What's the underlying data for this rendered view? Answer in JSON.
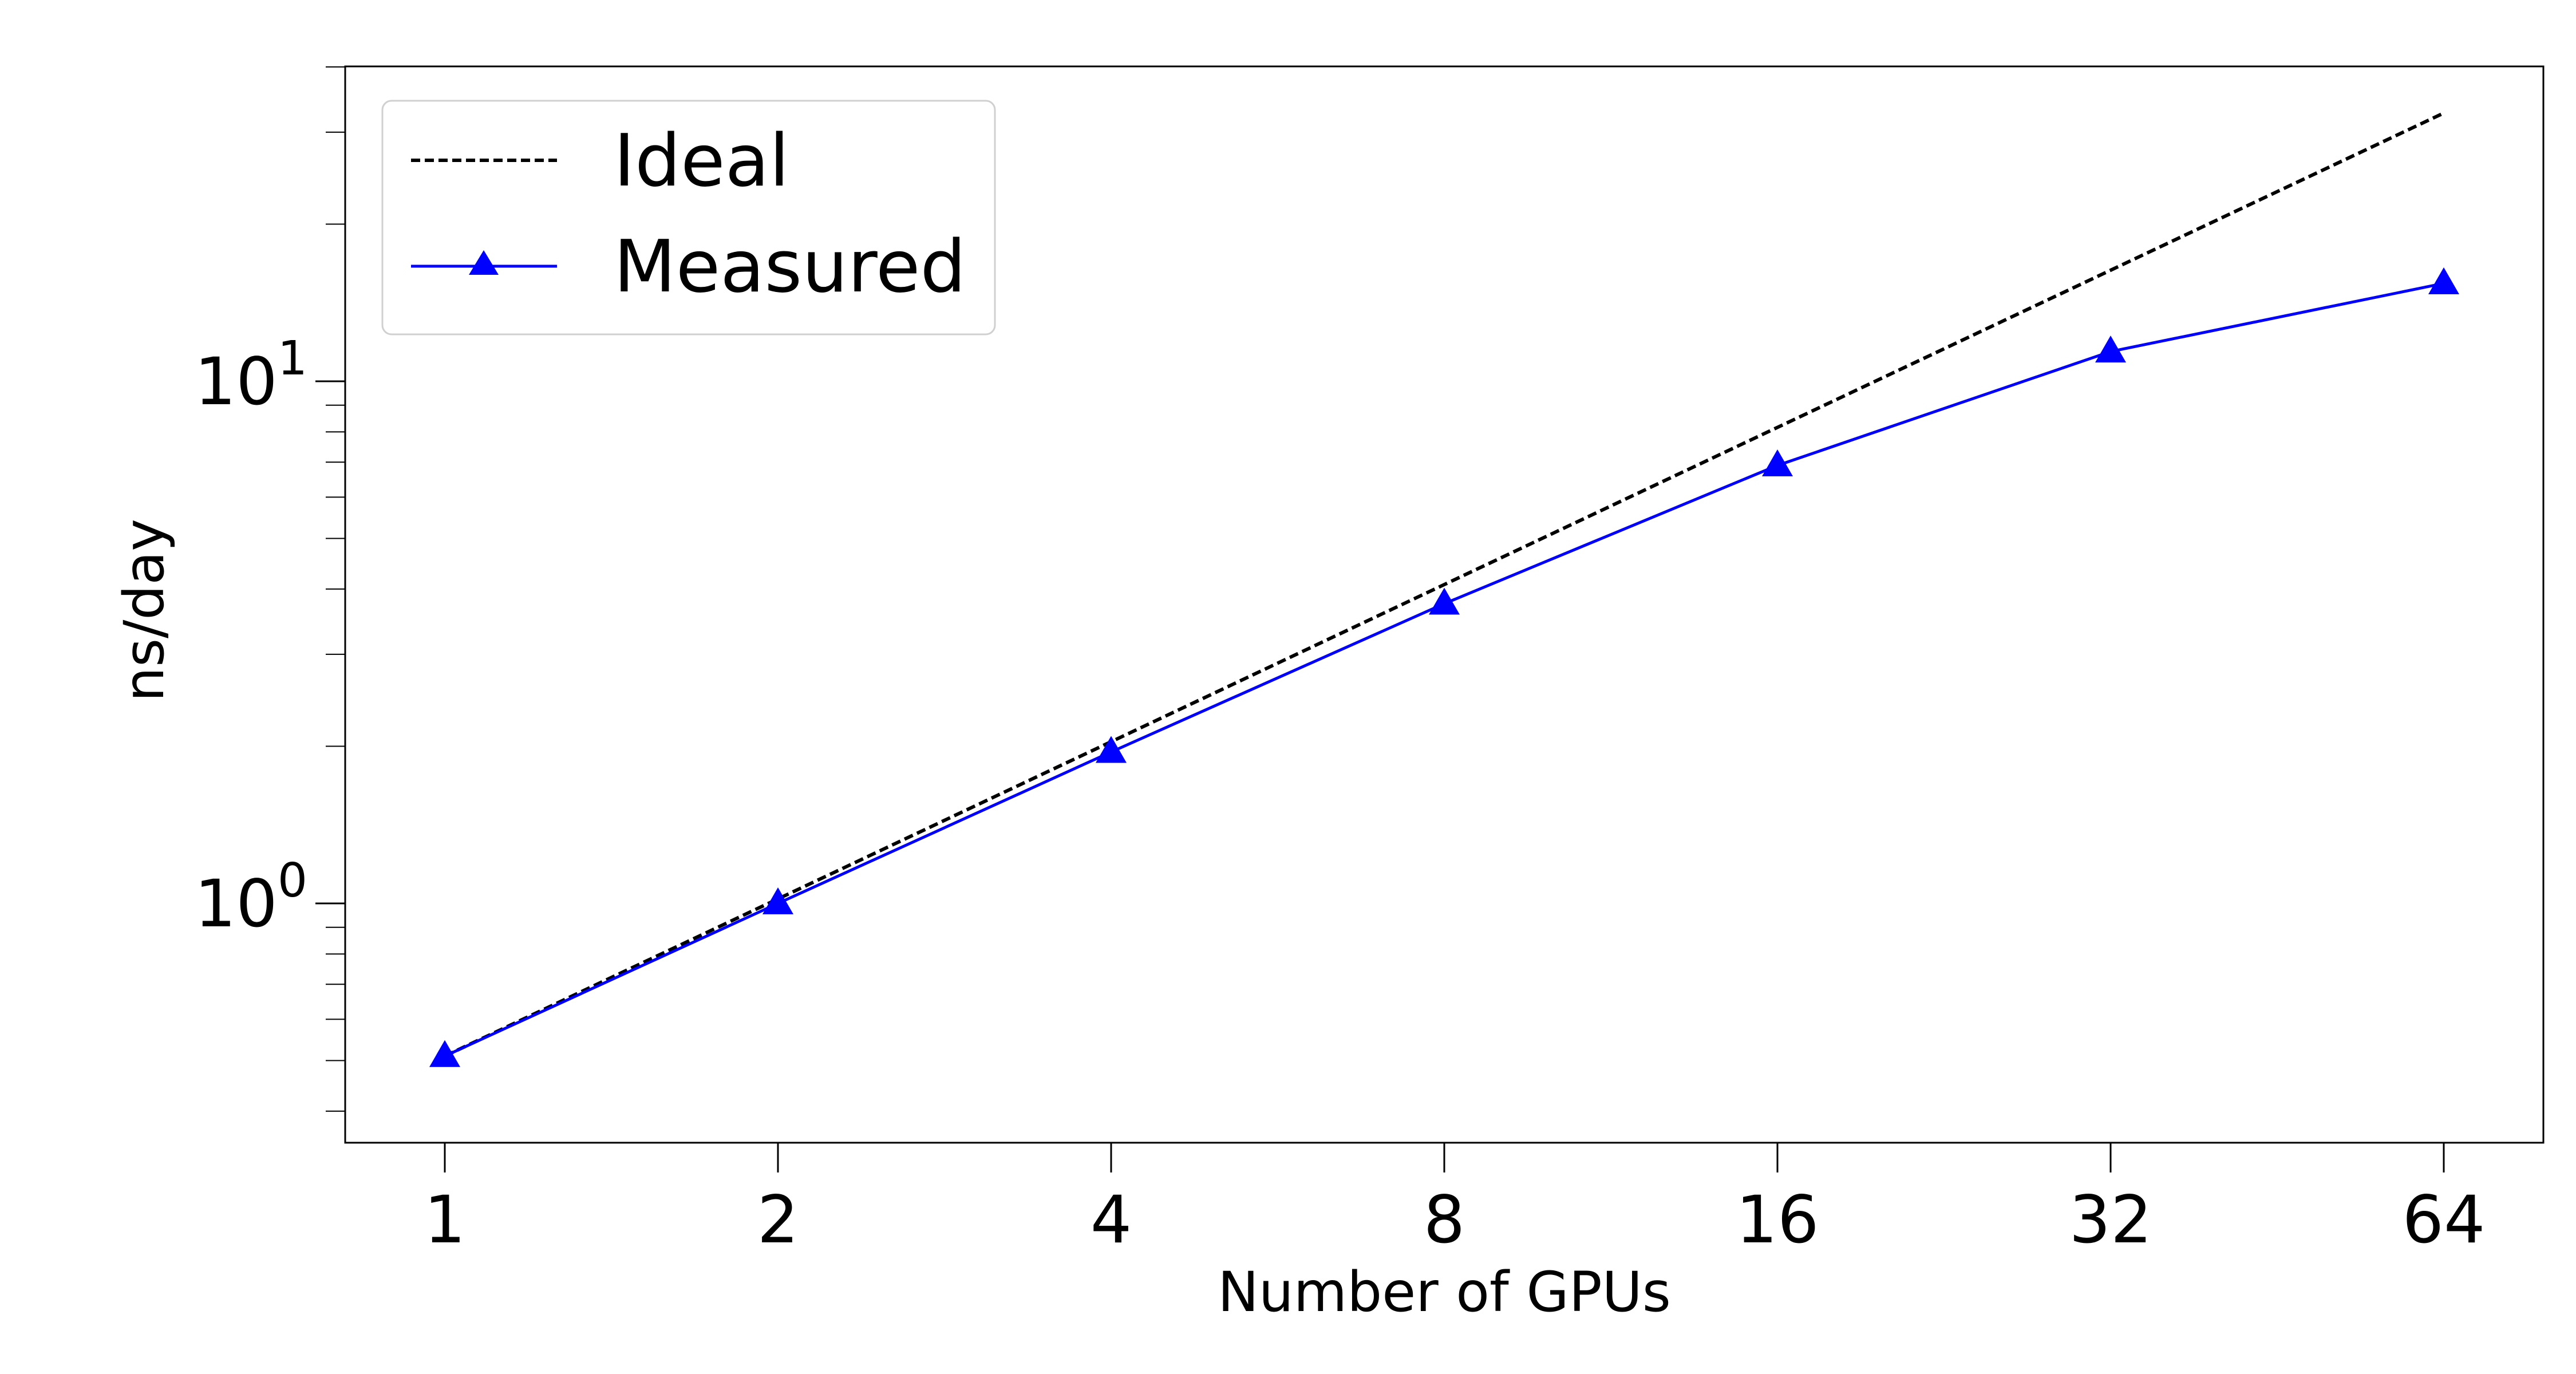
{
  "chart_data": {
    "type": "line",
    "x_scale": "log2",
    "y_scale": "log10",
    "x": [
      1,
      2,
      4,
      8,
      16,
      32,
      64
    ],
    "x_tick_labels": [
      "1",
      "2",
      "4",
      "8",
      "16",
      "32",
      "64"
    ],
    "xlabel": "Number of GPUs",
    "ylabel": "ns/day",
    "y_ticks": [
      {
        "value": 1,
        "base": "10",
        "exp": "0"
      },
      {
        "value": 10,
        "base": "10",
        "exp": "1"
      }
    ],
    "ylim": [
      0.38,
      40
    ],
    "grid": false,
    "legend_position": "upper-left",
    "series": [
      {
        "name": "Ideal",
        "style": "dashed",
        "color": "#000000",
        "marker": "none",
        "values": [
          0.51,
          1.02,
          2.04,
          4.08,
          8.16,
          16.32,
          32.64
        ]
      },
      {
        "name": "Measured",
        "style": "solid",
        "color": "#0000ff",
        "marker": "triangle",
        "values": [
          0.51,
          1.0,
          1.95,
          3.75,
          6.9,
          11.4,
          15.4
        ]
      }
    ]
  }
}
